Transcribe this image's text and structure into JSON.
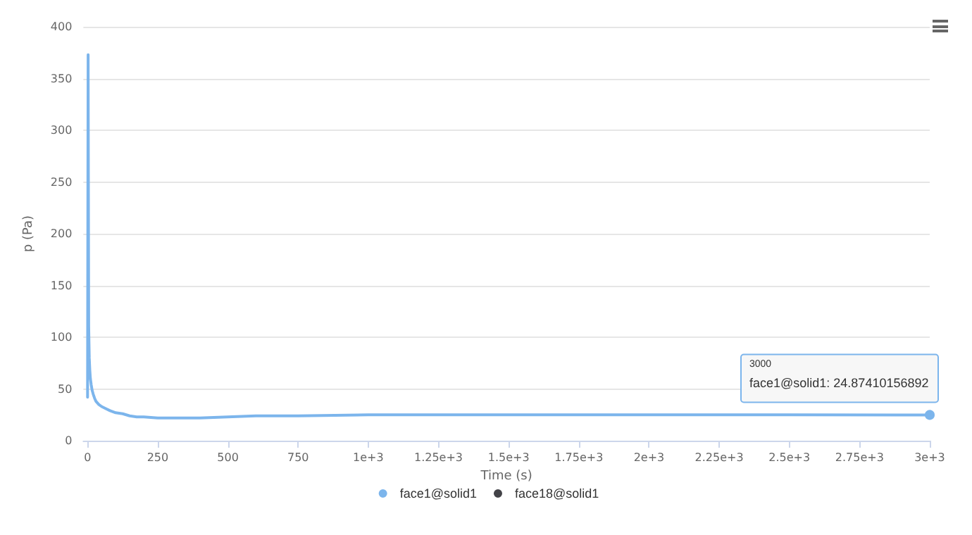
{
  "chart_data": {
    "type": "line",
    "xlabel": "Time (s)",
    "ylabel": "p (Pa)",
    "xlim": [
      -15,
      3000
    ],
    "ylim": [
      0,
      400
    ],
    "xticks": [
      0,
      250,
      500,
      750,
      {
        "value": 1000,
        "label": "1e+3"
      },
      {
        "value": 1250,
        "label": "1.25e+3"
      },
      {
        "value": 1500,
        "label": "1.5e+3"
      },
      {
        "value": 1750,
        "label": "1.75e+3"
      },
      {
        "value": 2000,
        "label": "2e+3"
      },
      {
        "value": 2250,
        "label": "2.25e+3"
      },
      {
        "value": 2500,
        "label": "2.5e+3"
      },
      {
        "value": 2750,
        "label": "2.75e+3"
      },
      {
        "value": 3000,
        "label": "3e+3"
      }
    ],
    "yticks": [
      0,
      50,
      100,
      150,
      200,
      250,
      300,
      350,
      400
    ],
    "x": [
      0,
      2,
      4,
      6,
      8,
      10,
      13,
      16,
      20,
      25,
      30,
      40,
      50,
      65,
      80,
      100,
      125,
      150,
      175,
      200,
      250,
      300,
      350,
      400,
      500,
      600,
      750,
      1000,
      1500,
      2000,
      2500,
      3000
    ],
    "series": [
      {
        "name": "face1@solid1",
        "color": "#7cb5ec",
        "values": [
          42,
          373,
          110,
          80,
          68,
          60,
          54,
          49,
          45,
          41,
          38,
          35,
          33,
          31,
          29,
          27,
          26,
          24,
          23,
          23,
          22,
          22,
          22,
          22,
          23,
          24,
          24,
          25,
          25,
          25,
          25,
          24.87410156892
        ]
      },
      {
        "name": "face18@solid1",
        "color": "#434348",
        "values": [
          null,
          null,
          null,
          null,
          null,
          null,
          null,
          null,
          null,
          null,
          null,
          null,
          null,
          null,
          null,
          null,
          null,
          null,
          null,
          null,
          null,
          null,
          null,
          null,
          null,
          null,
          null,
          null,
          null,
          null,
          null,
          null
        ]
      }
    ],
    "annotations": [
      "3000",
      "face1@solid1: 24.87410156892"
    ],
    "grid": "y",
    "legend": "bottom",
    "marker": "none",
    "line_style": "solid"
  }
}
